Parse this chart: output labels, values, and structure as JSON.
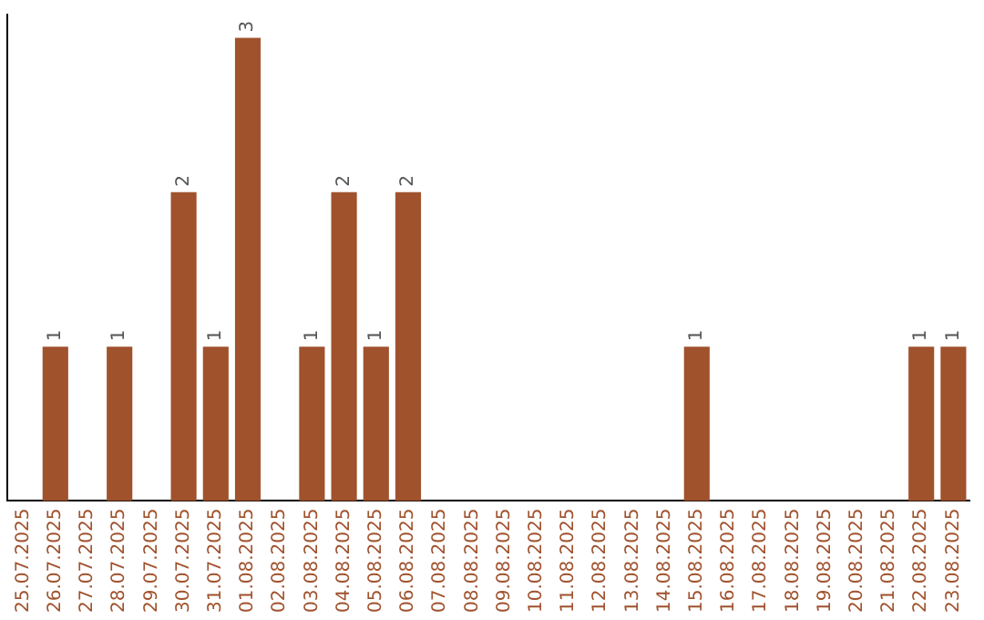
{
  "chart_data": {
    "type": "bar",
    "categories": [
      "25.07.2025",
      "26.07.2025",
      "27.07.2025",
      "28.07.2025",
      "29.07.2025",
      "30.07.2025",
      "31.07.2025",
      "01.08.2025",
      "02.08.2025",
      "03.08.2025",
      "04.08.2025",
      "05.08.2025",
      "06.08.2025",
      "07.08.2025",
      "08.08.2025",
      "09.08.2025",
      "10.08.2025",
      "11.08.2025",
      "12.08.2025",
      "13.08.2025",
      "14.08.2025",
      "15.08.2025",
      "16.08.2025",
      "17.08.2025",
      "18.08.2025",
      "19.08.2025",
      "20.08.2025",
      "21.08.2025",
      "22.08.2025",
      "23.08.2025"
    ],
    "values": [
      0,
      1,
      0,
      1,
      0,
      2,
      1,
      3,
      0,
      1,
      2,
      1,
      2,
      0,
      0,
      0,
      0,
      0,
      0,
      0,
      0,
      1,
      0,
      0,
      0,
      0,
      0,
      0,
      1,
      1
    ],
    "value_labels": [
      null,
      "1",
      null,
      "1",
      null,
      "2",
      "1",
      "3",
      null,
      "1",
      "2",
      "1",
      "2",
      null,
      null,
      null,
      null,
      null,
      null,
      null,
      null,
      "1",
      null,
      null,
      null,
      null,
      null,
      null,
      "1",
      "1"
    ],
    "color": "#a0522d",
    "ylim": [
      0,
      3.15
    ],
    "tick_labels": "x",
    "grid": false,
    "legend": false
  }
}
